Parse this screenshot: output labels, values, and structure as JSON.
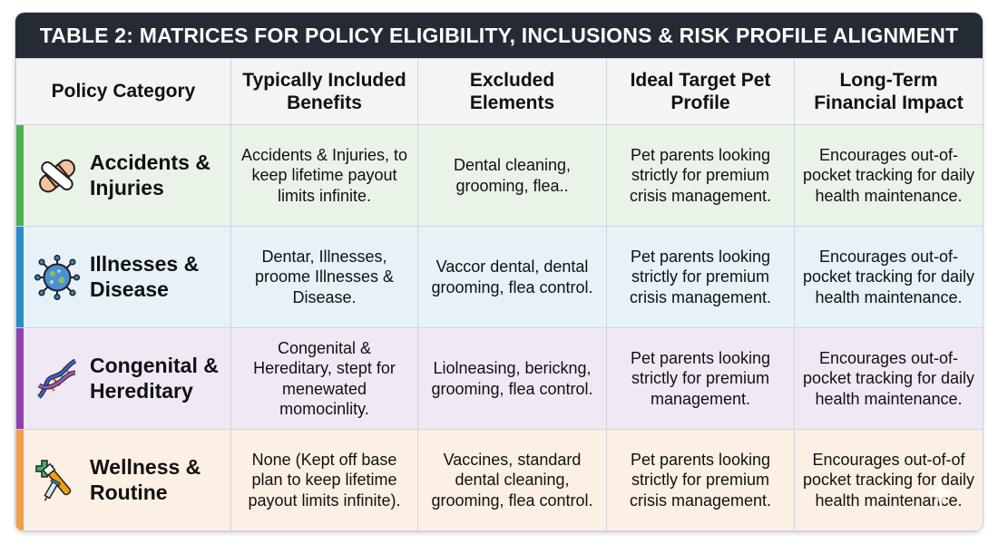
{
  "title": "TABLE 2: MATRICES FOR POLICY ELIGIBILITY, INCLUSIONS & RISK PROFILE ALIGNMENT",
  "columns": [
    "Policy Category",
    "Typically Included Benefits",
    "Excluded Elements",
    "Ideal Target Pet Profile",
    "Long-Term Financial Impact"
  ],
  "rows": [
    {
      "category": "Accidents & Injuries",
      "icon": "bandage-icon",
      "accent_color": "#4caf50",
      "included": "Accidents & Injuries, to keep lifetime payout limits infinite.",
      "excluded": "Dental cleaning, grooming, flea..",
      "profile": "Pet parents looking strictly for premium crisis management.",
      "impact": "Encourages out-of-pocket tracking for daily health maintenance."
    },
    {
      "category": "Illnesses & Disease",
      "icon": "virus-icon",
      "accent_color": "#2b8cc8",
      "included": "Dentar, Illnesses, proome Illnesses & Disease.",
      "excluded": "Vaccor dental, dental grooming, flea control.",
      "profile": "Pet parents looking strictly for premium crisis management.",
      "impact": "Encourages out-of-pocket tracking for daily health maintenance."
    },
    {
      "category": "Congenital & Hereditary",
      "icon": "dna-icon",
      "accent_color": "#8e44ad",
      "included": "Congenital & Hereditary, stept for menewated momocinlity.",
      "excluded": "Liolneasing, berickng, grooming, flea control.",
      "profile": "Pet parents looking strictly for premium management.",
      "impact": "Encourages out-of-pocket tracking for daily health maintenance."
    },
    {
      "category": "Wellness & Routine",
      "icon": "wellness-kit-icon",
      "accent_color": "#f0a04b",
      "included": "None (Kept off base plan to keep lifetime payout limits infinite).",
      "excluded": "Vaccines, standard dental cleaning, grooming, flea control.",
      "profile": "Pet parents looking strictly for premium crisis management.",
      "impact": "Encourages out-of-of pocket tracking for daily health maintenance."
    }
  ]
}
